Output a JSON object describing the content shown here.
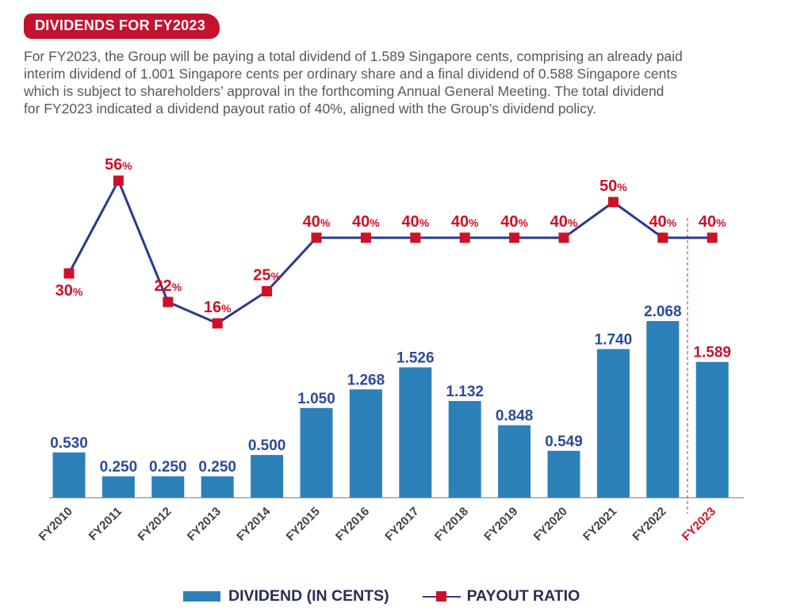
{
  "page": {
    "badge": "DIVIDENDS FOR FY2023"
  },
  "intro": {
    "lines": [
      "For FY2023, the Group will be paying a total dividend of 1.589 Singapore cents, comprising an already paid",
      "interim dividend of 1.001 Singapore cents per ordinary share and a final dividend of 0.588 Singapore cents",
      "which is subject to shareholders’ approval in the forthcoming Annual General Meeting. The total dividend",
      "for FY2023 indicated a dividend payout ratio of 40%, aligned with the Group’s dividend policy."
    ]
  },
  "legend": {
    "dividend": "DIVIDEND (IN CENTS)",
    "payout": "PAYOUT RATIO"
  },
  "colors": {
    "accent_red": "#C5122F",
    "label_red": "#CD1127",
    "bar_blue": "#2C80B8",
    "line_navy": "#2B3A8F",
    "value_navy": "#2C4A9B",
    "axis_gray": "#B9B9B9",
    "xlabel_gray": "#414042",
    "text_gray": "#58585A"
  },
  "chart_data": {
    "type": "combo",
    "categories": [
      "FY2010",
      "FY2011",
      "FY2012",
      "FY2013",
      "FY2014",
      "FY2015",
      "FY2016",
      "FY2017",
      "FY2018",
      "FY2019",
      "FY2020",
      "FY2021",
      "FY2022",
      "FY2023"
    ],
    "series": [
      {
        "name": "DIVIDEND (IN CENTS)",
        "type": "bar",
        "unit": "Singapore cents",
        "values": [
          0.53,
          0.25,
          0.25,
          0.25,
          0.5,
          1.05,
          1.268,
          1.526,
          1.132,
          0.848,
          0.549,
          1.74,
          2.068,
          1.589
        ],
        "value_labels": [
          "0.530",
          "0.250",
          "0.250",
          "0.250",
          "0.500",
          "1.050",
          "1.268",
          "1.526",
          "1.132",
          "0.848",
          "0.549",
          "1.740",
          "2.068",
          "1.589"
        ]
      },
      {
        "name": "PAYOUT RATIO",
        "type": "line",
        "unit": "%",
        "values": [
          30,
          56,
          22,
          16,
          25,
          40,
          40,
          40,
          40,
          40,
          40,
          50,
          40,
          40
        ],
        "value_labels": [
          "30%",
          "56%",
          "22%",
          "16%",
          "25%",
          "40%",
          "40%",
          "40%",
          "40%",
          "40%",
          "40%",
          "50%",
          "40%",
          "40%"
        ]
      }
    ],
    "payout_label_below": [
      0
    ],
    "highlight_category": "FY2023",
    "highlight_divider_between": [
      "FY2022",
      "FY2023"
    ],
    "ylim_bar": [
      0,
      2.2
    ],
    "ylim_line_pct": [
      0,
      60
    ],
    "grid": false,
    "legend_position": "bottom"
  }
}
